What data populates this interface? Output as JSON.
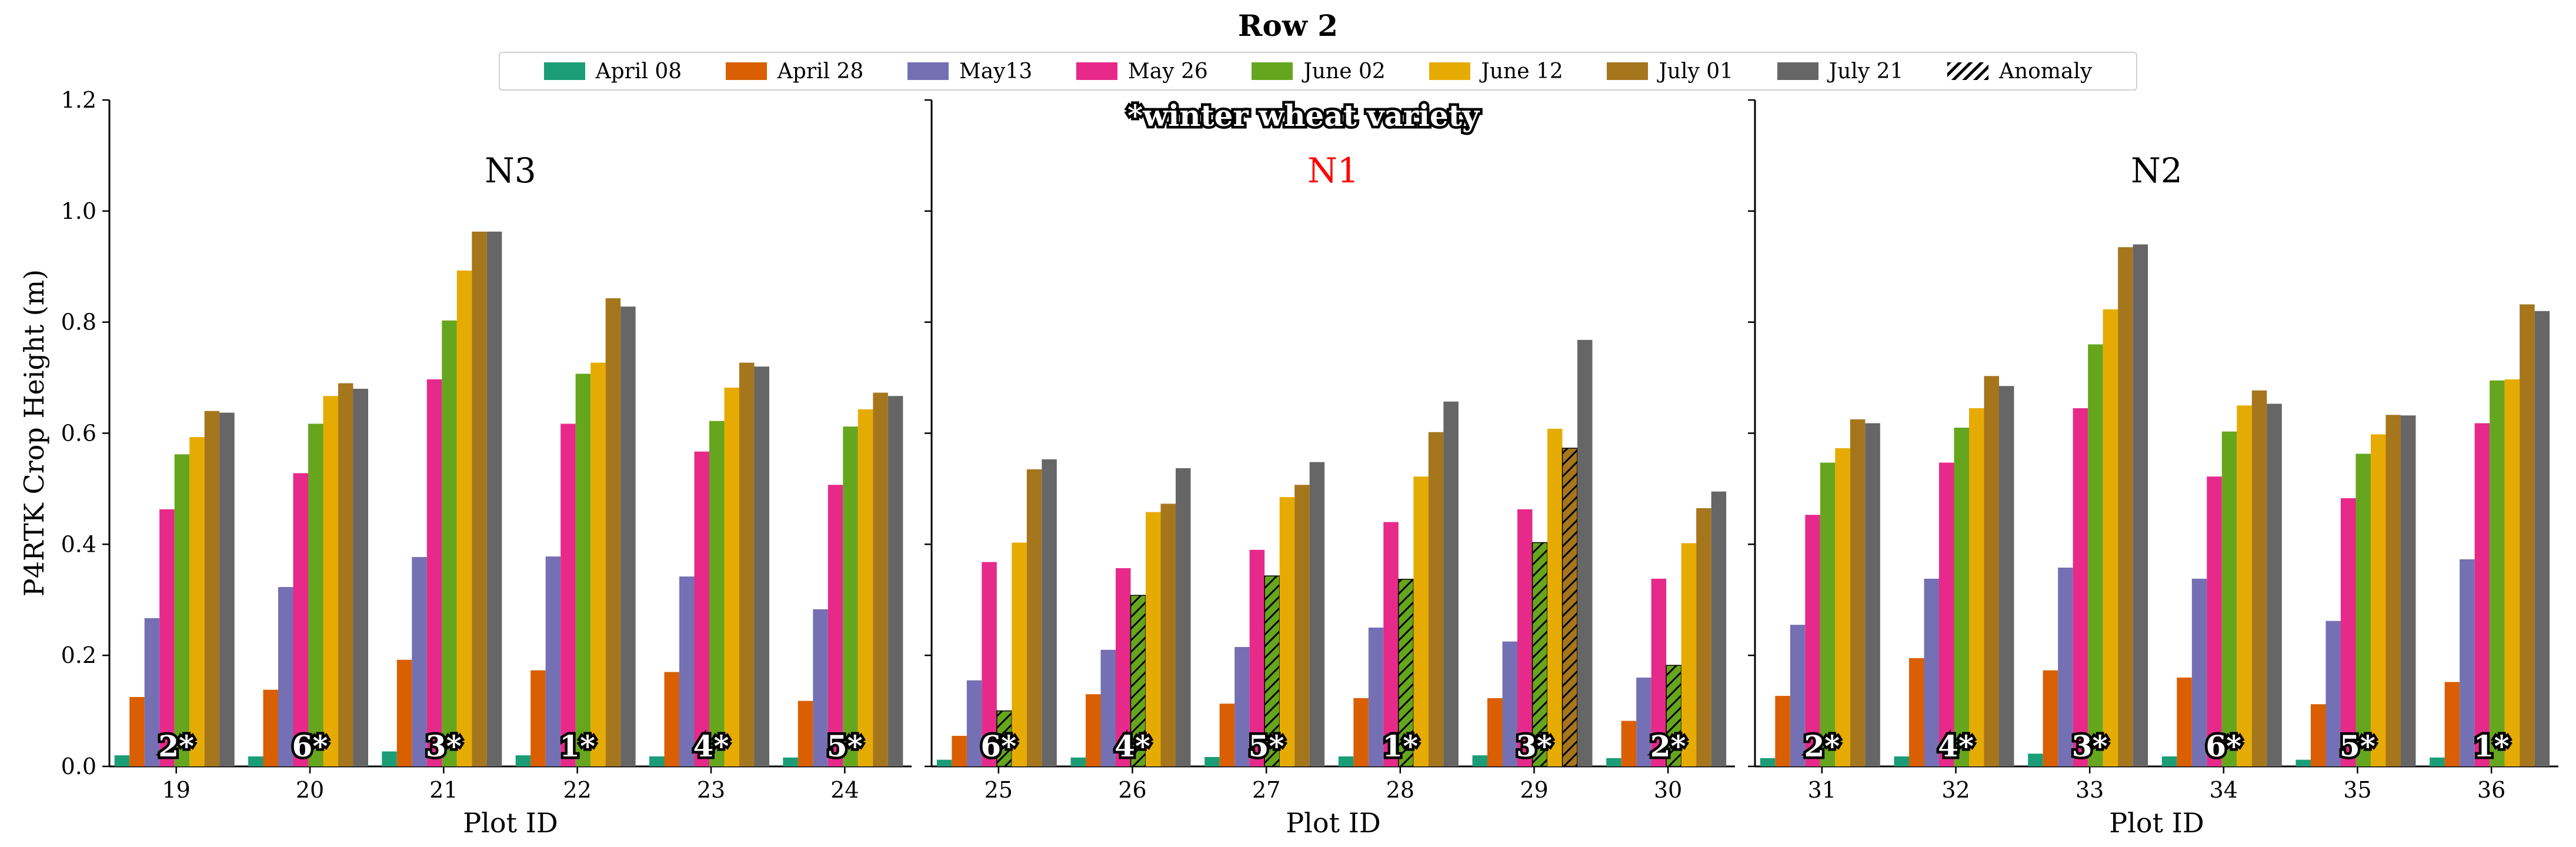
{
  "chart_data": {
    "type": "bar",
    "title": "Row 2",
    "ylabel": "P4RTK Crop Height  (m)",
    "xlabel": "Plot ID",
    "ylim": [
      0,
      1.2
    ],
    "yticks": [
      "0.0",
      "0.2",
      "0.4",
      "0.6",
      "0.8",
      "1.0",
      "1.2"
    ],
    "note": "*winter wheat variety",
    "legend": [
      {
        "label": "April 08",
        "color": "#1b9e77"
      },
      {
        "label": "April 28",
        "color": "#d95f02"
      },
      {
        "label": "May13",
        "color": "#7570b3"
      },
      {
        "label": "May 26",
        "color": "#e7298a"
      },
      {
        "label": "June 02",
        "color": "#66a61e"
      },
      {
        "label": "June 12",
        "color": "#e6ab02"
      },
      {
        "label": "July 01",
        "color": "#a6761d"
      },
      {
        "label": "July 21",
        "color": "#666666"
      },
      {
        "label": "Anomaly",
        "color": "#000000",
        "hatch": true
      }
    ],
    "panels": [
      {
        "name": "N3",
        "name_color": "#000000",
        "plots": [
          {
            "id": "19",
            "label": "2*",
            "values": [
              0.02,
              0.125,
              0.267,
              0.463,
              0.562,
              0.593,
              0.64,
              0.637
            ],
            "anomalies": []
          },
          {
            "id": "20",
            "label": "6*",
            "values": [
              0.018,
              0.138,
              0.323,
              0.528,
              0.617,
              0.667,
              0.69,
              0.68
            ],
            "anomalies": []
          },
          {
            "id": "21",
            "label": "3*",
            "values": [
              0.027,
              0.192,
              0.377,
              0.697,
              0.803,
              0.893,
              0.963,
              0.963
            ],
            "anomalies": []
          },
          {
            "id": "22",
            "label": "1*",
            "values": [
              0.02,
              0.173,
              0.378,
              0.617,
              0.707,
              0.727,
              0.843,
              0.828
            ],
            "anomalies": []
          },
          {
            "id": "23",
            "label": "4*",
            "values": [
              0.018,
              0.17,
              0.342,
              0.567,
              0.622,
              0.682,
              0.727,
              0.72
            ],
            "anomalies": []
          },
          {
            "id": "24",
            "label": "5*",
            "values": [
              0.016,
              0.118,
              0.283,
              0.507,
              0.612,
              0.643,
              0.673,
              0.667
            ],
            "anomalies": []
          }
        ]
      },
      {
        "name": "N1",
        "name_color": "#ff0000",
        "plots": [
          {
            "id": "25",
            "label": "6*",
            "values": [
              0.012,
              0.055,
              0.155,
              0.368,
              0.1,
              0.403,
              0.535,
              0.553
            ],
            "anomalies": [
              4
            ]
          },
          {
            "id": "26",
            "label": "4*",
            "values": [
              0.016,
              0.13,
              0.21,
              0.357,
              0.308,
              0.458,
              0.473,
              0.537
            ],
            "anomalies": [
              4
            ]
          },
          {
            "id": "27",
            "label": "5*",
            "values": [
              0.017,
              0.113,
              0.215,
              0.39,
              0.343,
              0.485,
              0.507,
              0.548
            ],
            "anomalies": [
              4
            ]
          },
          {
            "id": "28",
            "label": "1*",
            "values": [
              0.018,
              0.123,
              0.25,
              0.44,
              0.337,
              0.522,
              0.602,
              0.657
            ],
            "anomalies": [
              4
            ]
          },
          {
            "id": "29",
            "label": "3*",
            "values": [
              0.02,
              0.123,
              0.225,
              0.463,
              0.403,
              0.608,
              0.573,
              0.768
            ],
            "anomalies": [
              4,
              6
            ]
          },
          {
            "id": "30",
            "label": "2*",
            "values": [
              0.015,
              0.082,
              0.16,
              0.338,
              0.182,
              0.402,
              0.465,
              0.495
            ],
            "anomalies": [
              4
            ]
          }
        ]
      },
      {
        "name": "N2",
        "name_color": "#000000",
        "plots": [
          {
            "id": "31",
            "label": "2*",
            "values": [
              0.015,
              0.127,
              0.255,
              0.453,
              0.547,
              0.573,
              0.625,
              0.618
            ],
            "anomalies": []
          },
          {
            "id": "32",
            "label": "4*",
            "values": [
              0.018,
              0.195,
              0.338,
              0.547,
              0.61,
              0.645,
              0.703,
              0.685
            ],
            "anomalies": []
          },
          {
            "id": "33",
            "label": "3*",
            "values": [
              0.023,
              0.173,
              0.358,
              0.645,
              0.76,
              0.823,
              0.935,
              0.94
            ],
            "anomalies": []
          },
          {
            "id": "34",
            "label": "6*",
            "values": [
              0.018,
              0.16,
              0.338,
              0.522,
              0.603,
              0.65,
              0.677,
              0.653
            ],
            "anomalies": []
          },
          {
            "id": "35",
            "label": "5*",
            "values": [
              0.012,
              0.112,
              0.262,
              0.483,
              0.563,
              0.598,
              0.633,
              0.632
            ],
            "anomalies": []
          },
          {
            "id": "36",
            "label": "1*",
            "values": [
              0.016,
              0.152,
              0.373,
              0.618,
              0.695,
              0.697,
              0.832,
              0.82
            ],
            "anomalies": []
          }
        ]
      }
    ]
  }
}
